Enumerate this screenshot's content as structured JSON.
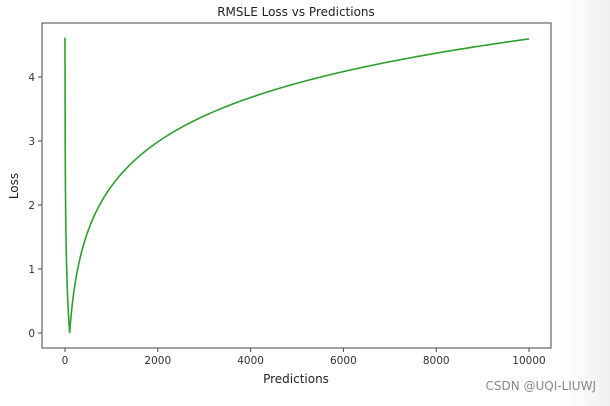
{
  "chart_data": {
    "type": "line",
    "title": "RMSLE Loss vs Predictions",
    "xlabel": "Predictions",
    "ylabel": "Loss",
    "xlim": [
      -500,
      10500
    ],
    "ylim": [
      -0.23,
      4.85
    ],
    "xticks": [
      0,
      2000,
      4000,
      6000,
      8000,
      10000
    ],
    "yticks": [
      0,
      1,
      2,
      3,
      4
    ],
    "grid": false,
    "legend": null,
    "series": [
      {
        "name": "loss",
        "color": "#2ca02c",
        "formula": "abs(log(x+1) - log(101))",
        "x": [
          0,
          25,
          50,
          75,
          100,
          150,
          200,
          300,
          500,
          750,
          1000,
          1500,
          2000,
          3000,
          4000,
          5000,
          6000,
          7000,
          8000,
          9000,
          10000
        ],
        "y": [
          4.62,
          1.36,
          0.69,
          0.29,
          0.0,
          0.4,
          0.68,
          1.09,
          1.6,
          2.01,
          2.3,
          2.7,
          2.99,
          3.39,
          3.68,
          3.9,
          4.08,
          4.24,
          4.37,
          4.49,
          4.6
        ]
      }
    ]
  },
  "watermark": "CSDN @UQI-LIUWJ"
}
